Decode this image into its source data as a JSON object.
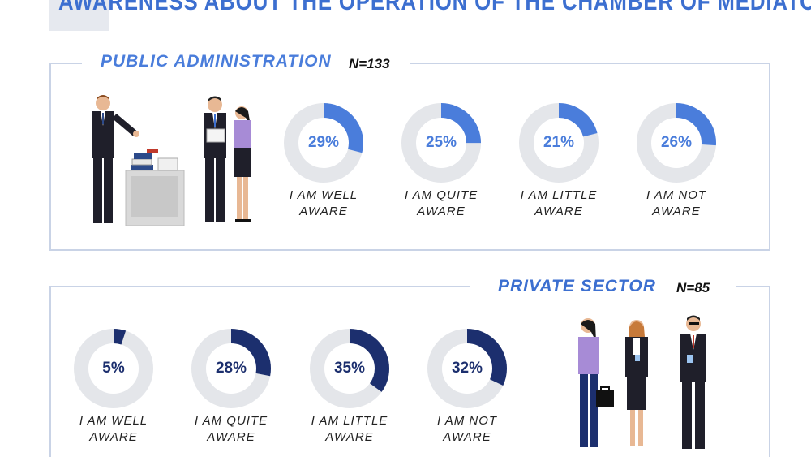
{
  "title": "AWARENESS ABOUT THE OPERATION OF THE CHAMBER OF MEDIATORS",
  "colors": {
    "public": "#4a7ddb",
    "private": "#1c2f6e",
    "track": "#e4e6ea",
    "title": "#3c6fd0"
  },
  "public": {
    "label": "PUBLIC ADMINISTRATION",
    "n": "N=133",
    "illustration": "office-workers-illustration",
    "items": [
      {
        "value": 29,
        "pct": "29%",
        "line1": "I AM WELL",
        "line2": "AWARE"
      },
      {
        "value": 25,
        "pct": "25%",
        "line1": "I AM QUITE",
        "line2": "AWARE"
      },
      {
        "value": 21,
        "pct": "21%",
        "line1": "I AM LITTLE",
        "line2": "AWARE"
      },
      {
        "value": 26,
        "pct": "26%",
        "line1": "I AM NOT",
        "line2": "AWARE"
      }
    ]
  },
  "private": {
    "label": "PRIVATE SECTOR",
    "n": "N=85",
    "illustration": "business-people-illustration",
    "items": [
      {
        "value": 5,
        "pct": "5%",
        "line1": "I AM WELL",
        "line2": "AWARE"
      },
      {
        "value": 28,
        "pct": "28%",
        "line1": "I AM QUITE",
        "line2": "AWARE"
      },
      {
        "value": 35,
        "pct": "35%",
        "line1": "I AM LITTLE",
        "line2": "AWARE"
      },
      {
        "value": 32,
        "pct": "32%",
        "line1": "I AM NOT",
        "line2": "AWARE"
      }
    ]
  },
  "chart_data": [
    {
      "type": "pie",
      "title": "PUBLIC ADMINISTRATION",
      "subtitle": "N=133",
      "categories": [
        "I AM WELL AWARE",
        "I AM QUITE AWARE",
        "I AM LITTLE AWARE",
        "I AM NOT AWARE"
      ],
      "values": [
        29,
        25,
        21,
        26
      ]
    },
    {
      "type": "pie",
      "title": "PRIVATE SECTOR",
      "subtitle": "N=85",
      "categories": [
        "I AM WELL AWARE",
        "I AM QUITE AWARE",
        "I AM LITTLE AWARE",
        "I AM NOT AWARE"
      ],
      "values": [
        5,
        28,
        35,
        32
      ]
    }
  ]
}
